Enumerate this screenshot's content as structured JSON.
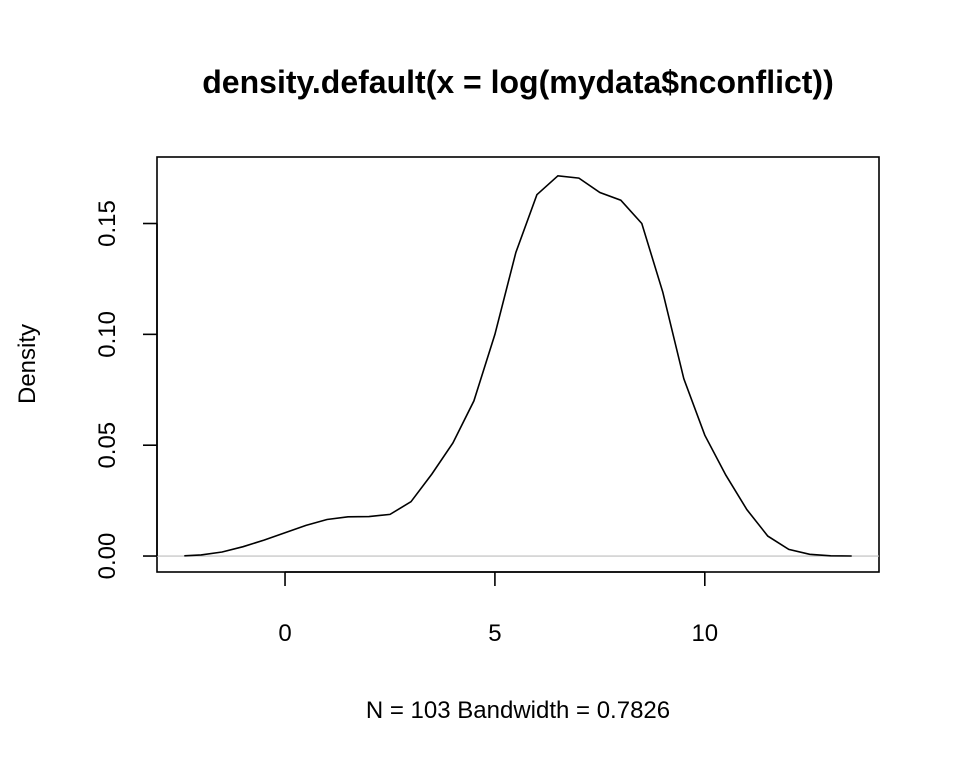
{
  "chart_data": {
    "type": "line",
    "title": "density.default(x = log(mydata$nconflict))",
    "xlabel": "N = 103   Bandwidth = 0.7826",
    "ylabel": "Density",
    "xlim": [
      -3.05,
      14.15
    ],
    "ylim": [
      -0.0072,
      0.18
    ],
    "xticks": [
      0,
      5,
      10
    ],
    "xtick_labels": [
      "0",
      "5",
      "10"
    ],
    "yticks": [
      0.0,
      0.05,
      0.1,
      0.15
    ],
    "ytick_labels": [
      "0.00",
      "0.05",
      "0.10",
      "0.15"
    ],
    "grid": false,
    "baseline_y": 0,
    "series": [
      {
        "x": [
          -2.4,
          -2.0,
          -1.5,
          -1.0,
          -0.5,
          0.0,
          0.5,
          1.0,
          1.5,
          2.0,
          2.5,
          3.0,
          3.5,
          4.0,
          4.5,
          5.0,
          5.5,
          6.0,
          6.5,
          7.0,
          7.5,
          8.0,
          8.5,
          9.0,
          9.5,
          10.0,
          10.5,
          11.0,
          11.5,
          12.0,
          12.5,
          13.0,
          13.5
        ],
        "y": [
          0.0001,
          0.0005,
          0.0018,
          0.0042,
          0.0072,
          0.0105,
          0.0138,
          0.0165,
          0.0177,
          0.0178,
          0.0188,
          0.0245,
          0.037,
          0.051,
          0.07,
          0.1,
          0.137,
          0.163,
          0.1715,
          0.1705,
          0.164,
          0.1605,
          0.15,
          0.119,
          0.08,
          0.0545,
          0.0365,
          0.021,
          0.009,
          0.003,
          0.0008,
          0.0001,
          0.0
        ]
      }
    ]
  }
}
